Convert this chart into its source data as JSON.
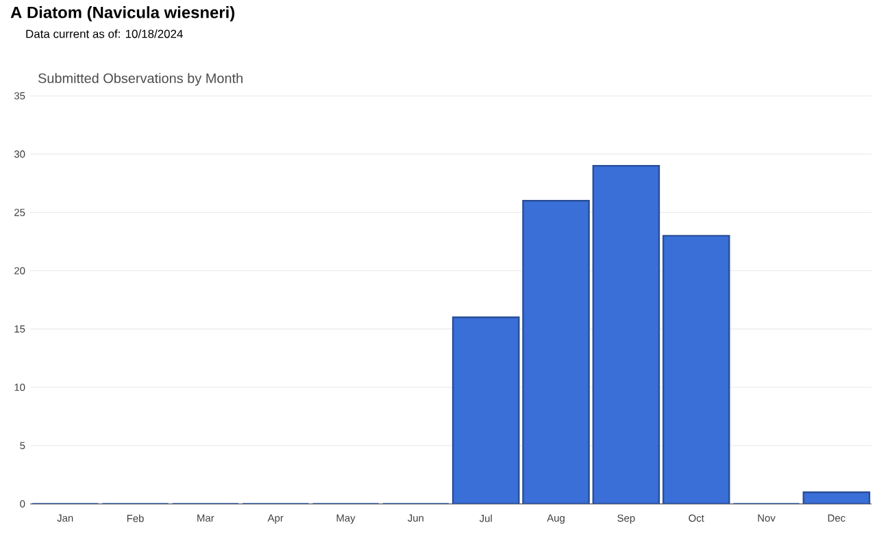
{
  "chart_data": {
    "type": "bar",
    "title": "A Diatom   (Navicula wiesneri)",
    "subtitle": "Data current as of: 10/18/2024",
    "annotations": [
      "Submitted Observations by Month"
    ],
    "categories": [
      "Jan",
      "Feb",
      "Mar",
      "Apr",
      "May",
      "Jun",
      "Jul",
      "Aug",
      "Sep",
      "Oct",
      "Nov",
      "Dec"
    ],
    "values": [
      0,
      0,
      0,
      0,
      0,
      0,
      16,
      26,
      29,
      23,
      0,
      1
    ],
    "color": "#3a6fd8",
    "ylim": [
      0,
      35
    ],
    "yticks": [
      0,
      5,
      10,
      15,
      20,
      25,
      30,
      35
    ],
    "grid": "y"
  }
}
